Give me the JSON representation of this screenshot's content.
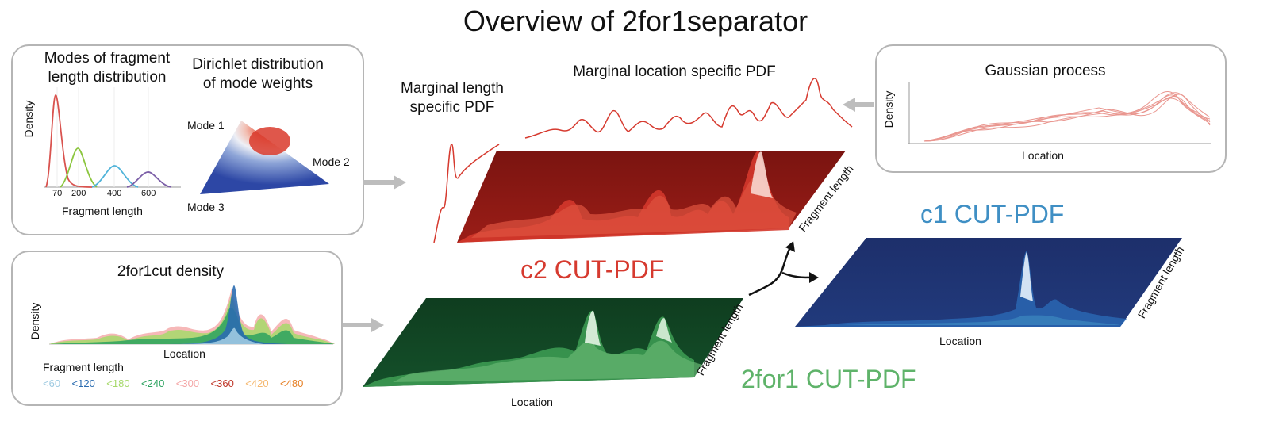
{
  "title": "Overview of 2for1separator",
  "modes_panel": {
    "title_line1": "Modes of fragment",
    "title_line2": "length distribution",
    "ylabel": "Density",
    "xlabel": "Fragment length",
    "ticks": [
      "70",
      "200",
      "400",
      "600"
    ],
    "colors": [
      "#d9534f",
      "#8cc63f",
      "#4fb3d9",
      "#7b5ea7"
    ]
  },
  "dirichlet_panel": {
    "title_line1": "Dirichlet distribution",
    "title_line2": "of mode weights",
    "mode1": "Mode 1",
    "mode2": "Mode 2",
    "mode3": "Mode 3"
  },
  "density_panel": {
    "title": "2for1cut density",
    "ylabel": "Density",
    "xlabel": "Location",
    "legend_title": "Fragment length",
    "legend": [
      {
        "label": "<60",
        "color": "#9ecae1"
      },
      {
        "label": "<120",
        "color": "#2b6cb0"
      },
      {
        "label": "<180",
        "color": "#a6d96a"
      },
      {
        "label": "<240",
        "color": "#2ca25f"
      },
      {
        "label": "<300",
        "color": "#f4a6a6"
      },
      {
        "label": "<360",
        "color": "#c0392b"
      },
      {
        "label": "<420",
        "color": "#f5b971"
      },
      {
        "label": "<480",
        "color": "#e67e22"
      }
    ]
  },
  "gaussian_panel": {
    "title": "Gaussian process",
    "ylabel": "Density",
    "xlabel": "Location"
  },
  "marginal_length_line1": "Marginal length",
  "marginal_length_line2": "specific PDF",
  "marginal_location": "Marginal location specific PDF",
  "c2_label": "c2 CUT-PDF",
  "c1_label": "c1 CUT-PDF",
  "twofor1_label": "2for1 CUT-PDF",
  "fragment_length_label": "Fragment length",
  "location_label": "Location",
  "colors": {
    "c2": "#d63a2f",
    "c1": "#3f8fc4",
    "twofor1": "#5fb36a",
    "panel_border": "#b5b5b5",
    "arrow_gray": "#bdbdbd"
  }
}
